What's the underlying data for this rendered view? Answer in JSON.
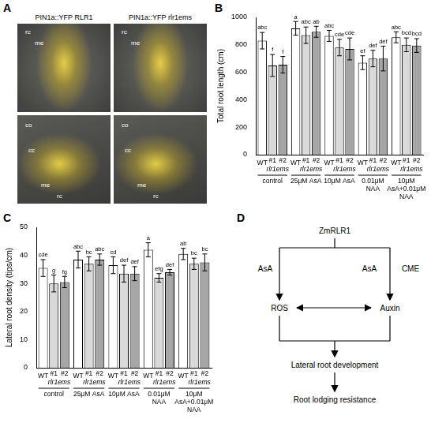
{
  "panel_A": {
    "panel": "A",
    "columns": [
      "PIN1a::YFP RLR1",
      "PIN1a::YFP rlr1ems"
    ],
    "rows": [
      [
        [
          "rc",
          "me"
        ],
        [
          "rc",
          "me"
        ]
      ],
      [
        [
          "co",
          "cc",
          "me",
          "rc"
        ],
        [
          "co",
          "cc",
          "me",
          "rc"
        ]
      ]
    ]
  },
  "chart_data": [
    {
      "panel": "B",
      "type": "bar",
      "y_label": "Total root length (cm)",
      "groups": [
        "control",
        "25μM AsA",
        "10μM AsA",
        "0.01μM NAA",
        "10μM AsA+0.01μM NAA"
      ],
      "mutant_label": "rlr1ems",
      "ylim": [
        0,
        1000
      ],
      "yticks": [
        0,
        200,
        400,
        600,
        800,
        1000
      ],
      "grid": false,
      "legend": false,
      "series": [
        {
          "name": "WT",
          "color": "#ffffff",
          "values": [
            830,
            920,
            865,
            670,
            855
          ],
          "errors": [
            60,
            50,
            40,
            50,
            40
          ],
          "letters": [
            "abc",
            "a",
            "abc",
            "ef",
            "abc"
          ]
        },
        {
          "name": "#1",
          "color": "#d9d9d9",
          "values": [
            650,
            870,
            780,
            700,
            800
          ],
          "errors": [
            80,
            60,
            60,
            60,
            50
          ],
          "letters": [
            "f",
            "abc",
            "cde",
            "def",
            "bcd"
          ]
        },
        {
          "name": "#2",
          "color": "#a6a6a6",
          "values": [
            655,
            895,
            770,
            700,
            795
          ],
          "errors": [
            60,
            40,
            80,
            90,
            50
          ],
          "letters": [
            "f",
            "ab",
            "cde",
            "def",
            "bcd"
          ]
        }
      ]
    },
    {
      "panel": "C",
      "type": "bar",
      "y_label": "Lateral root density (tips/cm)",
      "groups": [
        "control",
        "25μM AsA",
        "10μM AsA",
        "0.01μM NAA",
        "10μM AsA+0.01μM NAA"
      ],
      "mutant_label": "rlr1ems",
      "ylim": [
        0,
        50
      ],
      "yticks": [
        0,
        10,
        20,
        30,
        40,
        50
      ],
      "grid": false,
      "legend": false,
      "series": [
        {
          "name": "WT",
          "color": "#ffffff",
          "values": [
            35.5,
            38.5,
            36.5,
            42,
            40.5
          ],
          "errors": [
            3,
            3,
            3,
            2.5,
            2
          ],
          "letters": [
            "cde",
            "abc",
            "cd",
            "a",
            "ab"
          ]
        },
        {
          "name": "#1",
          "color": "#d9d9d9",
          "values": [
            30,
            37,
            33.5,
            32,
            37
          ],
          "errors": [
            3,
            2.5,
            3,
            1.5,
            2
          ],
          "letters": [
            "g",
            "bc",
            "def",
            "efg",
            "bc"
          ]
        },
        {
          "name": "#2",
          "color": "#a6a6a6",
          "values": [
            30.5,
            38.5,
            33.5,
            34,
            37.5
          ],
          "errors": [
            2,
            2,
            2.5,
            1,
            3
          ],
          "letters": [
            "fg",
            "abc",
            "def",
            "def",
            "bc"
          ]
        }
      ]
    }
  ],
  "panel_D": {
    "panel": "D",
    "top": "ZmRLR1",
    "left": "ROS",
    "right": "Auxin",
    "left_edge": "AsA",
    "right_edge": [
      "AsA",
      "CME"
    ],
    "middle": "Lateral root development",
    "bottom": "Root lodging resistance"
  }
}
